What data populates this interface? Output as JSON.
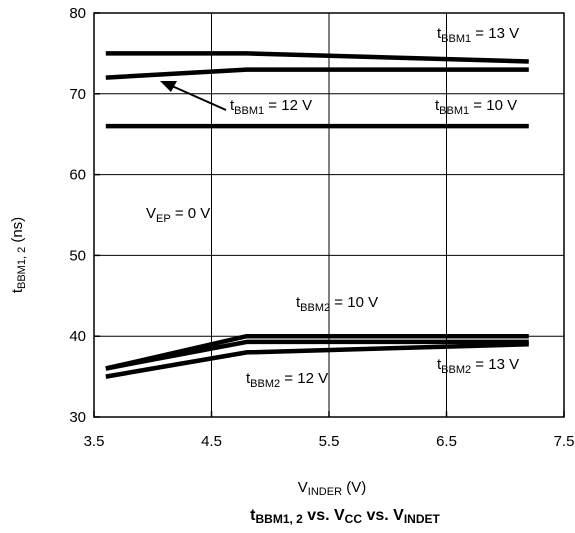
{
  "chart_data": {
    "type": "line",
    "title": {
      "main": "t",
      "main_sub": "BBM1, 2",
      "rest": [
        {
          "t": " vs. V",
          "sub": false
        },
        {
          "t": "CC",
          "sub": true
        },
        {
          "t": " vs. V",
          "sub": false
        },
        {
          "t": "INDET",
          "sub": true
        }
      ]
    },
    "xlabel": {
      "main": "V",
      "sub": "INDER",
      "suffix": " (V)"
    },
    "ylabel": {
      "main": "t",
      "sub": "BBM1, 2",
      "suffix": " (ns)"
    },
    "xlim": [
      3.5,
      7.5
    ],
    "ylim": [
      30,
      80
    ],
    "xticks": [
      "3.5",
      "4.5",
      "5.5",
      "6.5",
      "7.5"
    ],
    "yticks": [
      "30",
      "40",
      "50",
      "60",
      "70",
      "80"
    ],
    "grid": true,
    "series": [
      {
        "x": [
          3.6,
          4.8,
          7.2
        ],
        "y": [
          75,
          75,
          74
        ]
      },
      {
        "x": [
          3.6,
          4.8,
          7.2
        ],
        "y": [
          72,
          73,
          73
        ]
      },
      {
        "x": [
          3.6,
          4.8,
          7.2
        ],
        "y": [
          66,
          66,
          66
        ]
      },
      {
        "x": [
          3.6,
          4.8,
          7.2
        ],
        "y": [
          36,
          40,
          40
        ]
      },
      {
        "x": [
          3.6,
          4.8,
          7.2
        ],
        "y": [
          36,
          39.3,
          39.3
        ]
      },
      {
        "x": [
          3.6,
          4.8,
          7.2
        ],
        "y": [
          35,
          38,
          39
        ]
      }
    ],
    "annotations": [
      {
        "main": "t",
        "sub": "BBM1",
        "rest": " = 13 V"
      },
      {
        "main": "t",
        "sub": "BBM1",
        "rest": " = 12 V"
      },
      {
        "main": "t",
        "sub": "BBM1",
        "rest": " = 10 V"
      },
      {
        "main": "V",
        "sub": "EP",
        "rest": " = 0 V"
      },
      {
        "main": "t",
        "sub": "BBM2",
        "rest": " = 10 V"
      },
      {
        "main": "t",
        "sub": "BBM2",
        "rest": " = 12 V"
      },
      {
        "main": "t",
        "sub": "BBM2",
        "rest": " = 13 V"
      }
    ]
  }
}
